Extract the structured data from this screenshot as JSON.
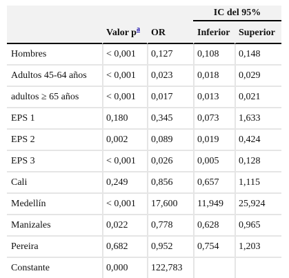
{
  "header": {
    "group_label": "IC del 95%",
    "columns": [
      "",
      "Valor p",
      "OR",
      "Inferior",
      "Superior"
    ],
    "footnote_marker": "a"
  },
  "rows": [
    [
      "Hombres",
      "< 0,001",
      "0,127",
      "0,108",
      "0,148"
    ],
    [
      "Adultos 45-64 años",
      "< 0,001",
      "0,023",
      "0,018",
      "0,029"
    ],
    [
      "adultos ≥ 65 años",
      "< 0,001",
      "0,017",
      "0,013",
      "0,021"
    ],
    [
      "EPS 1",
      "0,180",
      "0,345",
      "0,073",
      "1,633"
    ],
    [
      "EPS 2",
      "0,002",
      "0,089",
      "0,019",
      "0,424"
    ],
    [
      "EPS 3",
      "< 0,001",
      "0,026",
      "0,005",
      "0,128"
    ],
    [
      "Cali",
      "0,249",
      "0,856",
      "0,657",
      "1,115"
    ],
    [
      "Medellín",
      "< 0,001",
      "17,600",
      "11,949",
      "25,924"
    ],
    [
      "Manizales",
      "0,022",
      "0,778",
      "0,628",
      "0,965"
    ],
    [
      "Pereira",
      "0,682",
      "0,952",
      "0,754",
      "1,203"
    ],
    [
      "Constante",
      "0,000",
      "122,783",
      "",
      ""
    ]
  ]
}
